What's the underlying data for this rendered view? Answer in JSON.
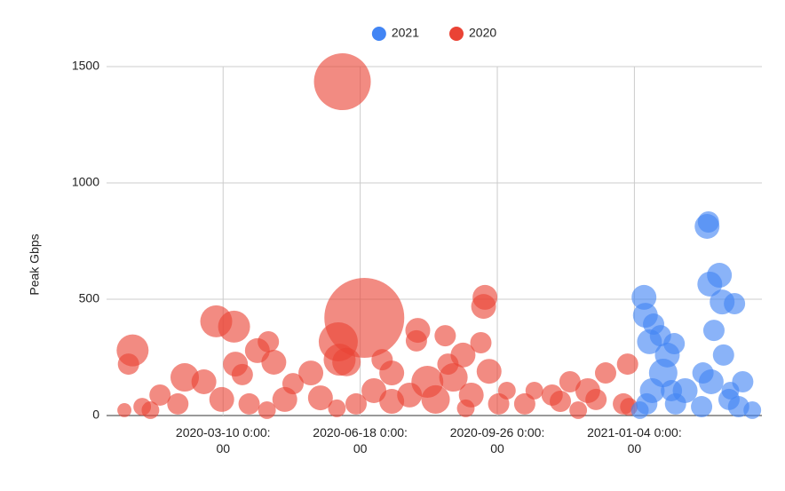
{
  "chart_data": {
    "type": "bubble",
    "y_label": "Peak Gbps",
    "legend": "top",
    "grid": true,
    "xlim": [
      "2019-12-16",
      "2021-04-07"
    ],
    "xticks": [
      {
        "value": "2020-03-10",
        "label": "2020-03-10 0:00:00"
      },
      {
        "value": "2020-06-18",
        "label": "2020-06-18 0:00:00"
      },
      {
        "value": "2020-09-26",
        "label": "2020-09-26 0:00:00"
      },
      {
        "value": "2021-01-04",
        "label": "2021-01-04 0:00:00"
      }
    ],
    "ylim": [
      0,
      1500
    ],
    "yticks": [
      0,
      500,
      1000,
      1500
    ],
    "series": [
      {
        "name": "2021",
        "color": "#4285f4",
        "x": [
          "2021-02-26",
          "2021-02-27",
          "2021-03-07",
          "2021-02-28",
          "2021-03-09",
          "2021-03-18",
          "2021-03-03",
          "2021-03-10",
          "2021-01-11",
          "2021-01-12",
          "2021-01-18",
          "2021-01-15",
          "2021-01-23",
          "2021-02-02",
          "2021-01-28",
          "2021-01-25",
          "2021-01-17",
          "2021-02-23",
          "2021-03-01",
          "2021-03-24",
          "2021-02-10",
          "2021-03-14",
          "2021-01-13",
          "2021-02-03",
          "2021-02-22",
          "2021-03-21",
          "2021-03-31",
          "2021-01-08",
          "2021-01-31",
          "2021-03-15"
        ],
        "values": [
          813,
          832,
          603,
          565,
          488,
          481,
          366,
          260,
          508,
          431,
          393,
          317,
          343,
          309,
          260,
          183,
          107,
          183,
          145,
          145,
          107,
          69,
          50,
          50,
          38,
          38,
          23,
          23,
          107,
          107
        ],
        "sizes": [
          87,
          64,
          87,
          87,
          87,
          64,
          64,
          64,
          87,
          87,
          64,
          87,
          64,
          64,
          87,
          114,
          87,
          64,
          87,
          64,
          87,
          64,
          64,
          64,
          64,
          64,
          44,
          44,
          64,
          44
        ]
      },
      {
        "name": "2020",
        "color": "#ea4335",
        "x": [
          "2020-01-04",
          "2020-01-01",
          "2020-03-05",
          "2020-03-18",
          "2020-02-11",
          "2020-06-05",
          "2020-06-21",
          "2020-06-02",
          "2020-06-03",
          "2020-04-04",
          "2020-04-12",
          "2020-04-16",
          "2020-03-19",
          "2020-03-24",
          "2020-07-30",
          "2020-07-29",
          "2020-08-19",
          "2020-09-17",
          "2020-09-16",
          "2020-09-14",
          "2020-09-01",
          "2020-08-21",
          "2020-08-25",
          "2020-08-06",
          "2020-07-04",
          "2020-07-11",
          "2020-05-13",
          "2020-04-30",
          "2020-06-28",
          "2020-10-23",
          "2020-11-18",
          "2020-12-14",
          "2020-12-30",
          "2020-12-01",
          "2020-11-05",
          "2020-10-03",
          "2020-02-25",
          "2020-01-24",
          "2020-01-11",
          "2019-12-29",
          "2020-02-06",
          "2020-03-09",
          "2020-03-29",
          "2020-04-24",
          "2020-05-20",
          "2020-06-15",
          "2020-07-11",
          "2020-07-24",
          "2020-08-12",
          "2020-09-07",
          "2020-09-27",
          "2020-10-16",
          "2020-11-11",
          "2020-12-07",
          "2020-12-27",
          "2020-12-31",
          "2020-01-17",
          "2020-04-11",
          "2020-06-01",
          "2020-09-03",
          "2020-11-24",
          "2020-09-20",
          "2020-06-08"
        ],
        "values": [
          280,
          221,
          405,
          382,
          164,
          1435,
          420,
          317,
          240,
          279,
          317,
          229,
          221,
          176,
          366,
          321,
          343,
          508,
          469,
          313,
          260,
          221,
          164,
          145,
          240,
          183,
          183,
          137,
          107,
          107,
          145,
          183,
          221,
          107,
          88,
          107,
          145,
          88,
          38,
          23,
          50,
          69,
          50,
          69,
          76,
          50,
          61,
          88,
          69,
          88,
          50,
          50,
          61,
          69,
          50,
          38,
          23,
          23,
          31,
          31,
          23,
          190,
          230
        ],
        "sizes": [
          144,
          64,
          144,
          144,
          114,
          455,
          900,
          215,
          144,
          87,
          64,
          87,
          87,
          64,
          87,
          64,
          64,
          87,
          87,
          64,
          87,
          64,
          114,
          144,
          64,
          87,
          87,
          64,
          87,
          44,
          64,
          64,
          64,
          87,
          64,
          44,
          87,
          64,
          44,
          28,
          64,
          87,
          64,
          87,
          87,
          64,
          87,
          87,
          114,
          87,
          64,
          64,
          64,
          64,
          64,
          44,
          44,
          44,
          44,
          44,
          44,
          87,
          114
        ]
      }
    ]
  }
}
